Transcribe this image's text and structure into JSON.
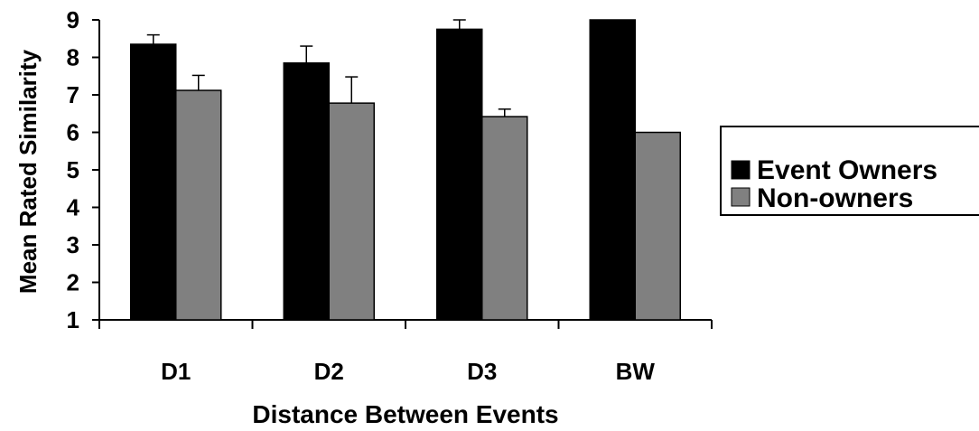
{
  "chart_data": {
    "type": "bar",
    "title": "",
    "xlabel": "Distance Between Events",
    "ylabel": "Mean Rated Similarity",
    "categories": [
      "D1",
      "D2",
      "D3",
      "BW"
    ],
    "ylim": [
      1,
      9
    ],
    "yticks": [
      "1",
      "2",
      "3",
      "4",
      "5",
      "6",
      "7",
      "8",
      "9"
    ],
    "grid": false,
    "legend_position": "right",
    "series": [
      {
        "name": "Event Owners",
        "color": "#000000",
        "values": [
          8.35,
          7.85,
          8.75,
          9.0
        ],
        "error_plus": [
          0.25,
          0.45,
          0.25,
          0
        ]
      },
      {
        "name": "Non-owners",
        "color": "#808080",
        "values": [
          7.12,
          6.78,
          6.42,
          6.0
        ],
        "error_plus": [
          0.4,
          0.7,
          0.2,
          0
        ]
      }
    ]
  }
}
